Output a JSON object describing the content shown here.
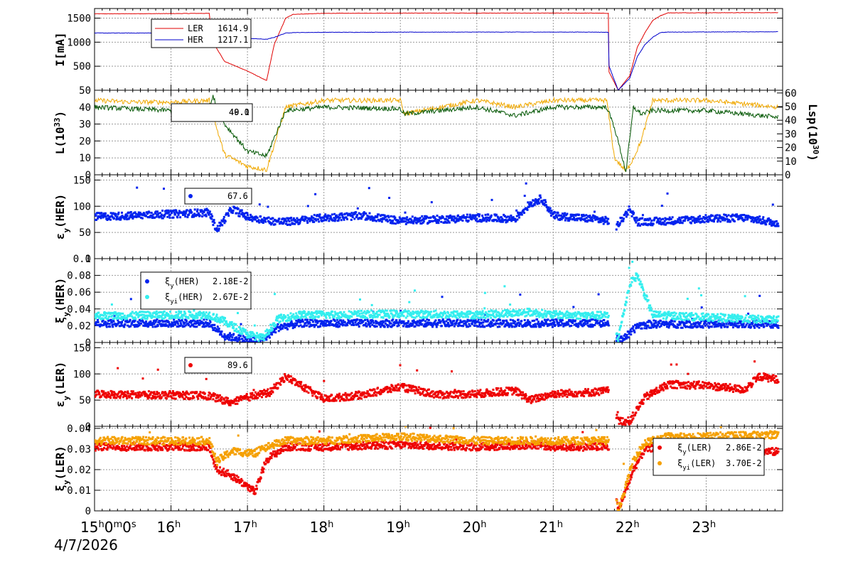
{
  "chart_data": [
    {
      "type": "line",
      "panel": "current",
      "ylabel": "I[mA]",
      "ylim": [
        0,
        1700
      ],
      "yticks": [
        500,
        1000,
        1500
      ],
      "ytick_labels": [
        "500",
        "1000",
        "1500"
      ],
      "x": [
        15.0,
        15.5,
        16.0,
        16.5,
        16.55,
        16.7,
        17.0,
        17.25,
        17.35,
        17.5,
        17.6,
        18.0,
        19.0,
        20.0,
        21.0,
        21.5,
        21.72,
        21.73,
        21.85,
        22.0,
        22.1,
        22.2,
        22.3,
        22.4,
        22.5,
        23.0,
        23.95
      ],
      "series": [
        {
          "name": "LER",
          "color": "#e00000",
          "value_label": "1614.9",
          "values": [
            1590,
            1592,
            1595,
            1600,
            1000,
            600,
            400,
            200,
            950,
            1500,
            1580,
            1600,
            1605,
            1605,
            1605,
            1605,
            1600,
            380,
            0,
            300,
            900,
            1200,
            1450,
            1550,
            1610,
            1612,
            1614.9
          ]
        },
        {
          "name": "HER",
          "color": "#0000cc",
          "value_label": "1217.1",
          "values": [
            1190,
            1190,
            1190,
            1190,
            1080,
            1080,
            1080,
            1060,
            1100,
            1190,
            1200,
            1205,
            1208,
            1210,
            1210,
            1210,
            1205,
            500,
            0,
            250,
            700,
            950,
            1100,
            1200,
            1210,
            1212,
            1217.1
          ]
        }
      ]
    },
    {
      "type": "line",
      "panel": "luminosity",
      "ylabel": "L(10",
      "ylabel_sup": "33",
      "ylabel_end": ")",
      "y2label": "Lsp(10",
      "y2label_sup": "30",
      "y2label_end": ")",
      "ylim": [
        0,
        50
      ],
      "yticks": [
        0,
        10,
        20,
        30,
        40
      ],
      "ytick_labels": [
        "0",
        "10",
        "20",
        "30",
        "40"
      ],
      "top_label": "50",
      "y2lim": [
        0,
        62
      ],
      "y2ticks": [
        0,
        10,
        20,
        30,
        40,
        50,
        60
      ],
      "y2tick_labels": [
        "0",
        "10",
        "20",
        "30",
        "40",
        "50",
        "60"
      ],
      "legend_value": "49.1",
      "legend_value_overlay": "40.0",
      "x": [
        15.0,
        15.5,
        16.0,
        16.5,
        16.55,
        16.7,
        17.0,
        17.25,
        17.5,
        18.0,
        19.0,
        19.05,
        20.0,
        20.5,
        21.0,
        21.7,
        21.8,
        21.95,
        22.05,
        22.15,
        22.3,
        23.0,
        23.95
      ],
      "series": [
        {
          "name": "L",
          "color": "#f0a800",
          "values": [
            44,
            43,
            43,
            44,
            35,
            12,
            5,
            3,
            40,
            44,
            44,
            36,
            44,
            40,
            44,
            44,
            10,
            2,
            10,
            20,
            44,
            44,
            40
          ]
        },
        {
          "name": "Lsp",
          "color": "#005500",
          "values": [
            40,
            39,
            38,
            40,
            46,
            30,
            14,
            11,
            38,
            40,
            39,
            36,
            40,
            35,
            40,
            40,
            28,
            2,
            40,
            36,
            38,
            38,
            34
          ]
        }
      ]
    },
    {
      "type": "scatter",
      "panel": "emit_her",
      "ylabel": "ε",
      "ylabel_sub": "y",
      "ylabel_end": "(HER)",
      "ylim": [
        0,
        160
      ],
      "yticks": [
        0,
        50,
        100,
        150
      ],
      "ytick_labels": [
        "0",
        "50",
        "100",
        "150"
      ],
      "legend_value": "67.6",
      "series": [
        {
          "name": "",
          "color": "#0022ee",
          "x": [
            15.0,
            15.5,
            16.0,
            16.5,
            16.6,
            16.8,
            17.0,
            17.3,
            17.5,
            18.0,
            18.5,
            19.0,
            19.5,
            20.0,
            20.5,
            20.7,
            20.85,
            21.0,
            21.5,
            21.72,
            21.8,
            22.0,
            22.1,
            22.5,
            23.0,
            23.5,
            23.95
          ],
          "values": [
            80,
            82,
            85,
            88,
            55,
            95,
            80,
            72,
            70,
            78,
            82,
            72,
            75,
            78,
            76,
            105,
            115,
            82,
            76,
            72,
            55,
            95,
            70,
            72,
            76,
            78,
            67.6
          ]
        }
      ]
    },
    {
      "type": "scatter",
      "panel": "xi_her",
      "ylabel": "ξ",
      "ylabel_sub": "y",
      "ylabel_end": "(HER)",
      "ylim": [
        0,
        0.1
      ],
      "yticks": [
        0,
        0.02,
        0.04,
        0.06,
        0.08,
        0.1
      ],
      "ytick_labels": [
        "0",
        "0.02",
        "0.04",
        "0.06",
        "0.08",
        "0.1"
      ],
      "x": [
        15.0,
        15.5,
        16.0,
        16.5,
        16.7,
        17.0,
        17.2,
        17.4,
        17.7,
        18.0,
        19.0,
        20.0,
        20.7,
        21.0,
        21.72,
        21.85,
        22.0,
        22.1,
        22.3,
        23.0,
        23.95
      ],
      "series": [
        {
          "name": "ξy(HER)",
          "name_sym": "ξ",
          "name_sub": "y",
          "name_end": "(HER)",
          "value_label": "2.18E-2",
          "color": "#0022ee",
          "values": [
            0.023,
            0.023,
            0.023,
            0.023,
            0.008,
            0.003,
            0.003,
            0.018,
            0.023,
            0.023,
            0.023,
            0.023,
            0.023,
            0.023,
            0.023,
            0.002,
            0.01,
            0.02,
            0.022,
            0.022,
            0.0218
          ]
        },
        {
          "name": "ξyi(HER)",
          "name_sym": "ξ",
          "name_sub": "yi",
          "name_end": "(HER)",
          "value_label": "2.67E-2",
          "color": "#33eeee",
          "values": [
            0.032,
            0.032,
            0.033,
            0.033,
            0.025,
            0.01,
            0.005,
            0.028,
            0.033,
            0.033,
            0.034,
            0.033,
            0.036,
            0.033,
            0.032,
            0.005,
            0.07,
            0.08,
            0.033,
            0.03,
            0.0267
          ]
        }
      ]
    },
    {
      "type": "scatter",
      "panel": "emit_ler",
      "ylabel": "ε",
      "ylabel_sub": "y",
      "ylabel_end": "(LER)",
      "ylim": [
        0,
        160
      ],
      "yticks": [
        0,
        50,
        100,
        150
      ],
      "ytick_labels": [
        "0",
        "50",
        "100",
        "150"
      ],
      "legend_value": "89.6",
      "series": [
        {
          "name": "",
          "color": "#ee0000",
          "x": [
            15.0,
            15.5,
            16.0,
            16.5,
            16.8,
            17.0,
            17.3,
            17.5,
            18.0,
            18.5,
            19.0,
            19.5,
            20.0,
            20.5,
            20.7,
            21.0,
            21.5,
            21.72,
            21.85,
            22.0,
            22.2,
            22.5,
            23.0,
            23.5,
            23.7,
            23.95
          ],
          "values": [
            62,
            60,
            60,
            58,
            45,
            55,
            65,
            95,
            52,
            60,
            75,
            60,
            62,
            68,
            50,
            62,
            65,
            68,
            10,
            10,
            55,
            80,
            78,
            70,
            95,
            89.6
          ]
        }
      ]
    },
    {
      "type": "scatter",
      "panel": "xi_ler",
      "ylabel": "ξ",
      "ylabel_sub": "y",
      "ylabel_end": "(LER)",
      "ylim": [
        0,
        0.041
      ],
      "yticks": [
        0,
        0.01,
        0.02,
        0.03,
        0.04
      ],
      "ytick_labels": [
        "0",
        "0.01",
        "0.02",
        "0.03",
        "0.04"
      ],
      "x": [
        15.0,
        15.5,
        16.0,
        16.5,
        16.6,
        16.8,
        17.0,
        17.1,
        17.25,
        17.5,
        18.0,
        19.0,
        20.0,
        20.8,
        21.0,
        21.72,
        21.85,
        21.95,
        22.05,
        22.2,
        22.5,
        23.0,
        23.95
      ],
      "series": [
        {
          "name": "ξy(LER)",
          "name_sym": "ξ",
          "name_sub": "y",
          "name_end": "(LER)",
          "value_label": "2.86E-2",
          "color": "#ee0000",
          "values": [
            0.031,
            0.031,
            0.031,
            0.031,
            0.02,
            0.017,
            0.012,
            0.009,
            0.025,
            0.031,
            0.031,
            0.032,
            0.031,
            0.032,
            0.031,
            0.031,
            0.0,
            0.01,
            0.02,
            0.03,
            0.032,
            0.03,
            0.0286
          ]
        },
        {
          "name": "ξyi(LER)",
          "name_sym": "ξ",
          "name_sub": "yi",
          "name_end": "(LER)",
          "value_label": "3.70E-2",
          "color": "#f5a000",
          "values": [
            0.034,
            0.034,
            0.034,
            0.034,
            0.024,
            0.029,
            0.028,
            0.028,
            0.031,
            0.034,
            0.034,
            0.036,
            0.034,
            0.034,
            0.034,
            0.034,
            0.0,
            0.012,
            0.025,
            0.033,
            0.036,
            0.036,
            0.037
          ]
        }
      ]
    }
  ],
  "x_axis": {
    "range": [
      15.0,
      24.0
    ],
    "ticks": [
      {
        "x": 15,
        "label": "15",
        "sup": "h",
        "rest": "0",
        "rest_sup": "m",
        "rest2": "0",
        "rest2_sup": "s"
      },
      {
        "x": 16,
        "label": "16",
        "sup": "h"
      },
      {
        "x": 17,
        "label": "17",
        "sup": "h"
      },
      {
        "x": 18,
        "label": "18",
        "sup": "h"
      },
      {
        "x": 19,
        "label": "19",
        "sup": "h"
      },
      {
        "x": 20,
        "label": "20",
        "sup": "h"
      },
      {
        "x": 21,
        "label": "21",
        "sup": "h"
      },
      {
        "x": 22,
        "label": "22",
        "sup": "h"
      },
      {
        "x": 23,
        "label": "23",
        "sup": "h"
      }
    ]
  },
  "date": "4/7/2026",
  "grid": true,
  "legends": {
    "current": "top-left",
    "luminosity": "top-left",
    "emit_her": "top-left",
    "xi_her": "top-left",
    "emit_ler": "top-left",
    "xi_ler": "top-right"
  }
}
